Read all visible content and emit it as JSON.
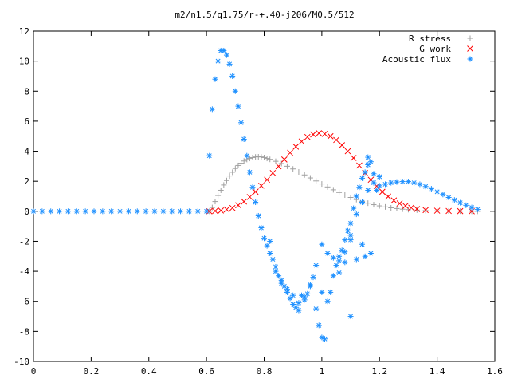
{
  "chart_data": {
    "type": "scatter",
    "title": "m2/n1.5/q1.75/r-+.40-j206/M0.5/512",
    "xlim": [
      0,
      1.6
    ],
    "ylim": [
      -10,
      12
    ],
    "x_ticks": [
      0,
      0.2,
      0.4,
      0.6,
      0.8,
      1,
      1.2,
      1.4,
      1.6
    ],
    "x_tick_labels": [
      "0",
      "0.2",
      "0.4",
      "0.6",
      "0.8",
      "1",
      "1.2",
      "1.4",
      "1.6"
    ],
    "y_ticks": [
      -10,
      -8,
      -6,
      -4,
      -2,
      0,
      2,
      4,
      6,
      8,
      10,
      12
    ],
    "y_tick_labels": [
      "-10",
      "-8",
      "-6",
      "-4",
      "-2",
      "0",
      "2",
      "4",
      "6",
      "8",
      "10",
      "12"
    ],
    "grid": false,
    "legend_position": "top-right",
    "series": [
      {
        "name": "R stress",
        "marker": "plus",
        "color": "#a0a0a0",
        "points": [
          [
            0.61,
            0.0
          ],
          [
            0.62,
            0.25
          ],
          [
            0.63,
            0.65
          ],
          [
            0.64,
            1.05
          ],
          [
            0.65,
            1.4
          ],
          [
            0.66,
            1.75
          ],
          [
            0.67,
            2.05
          ],
          [
            0.68,
            2.35
          ],
          [
            0.69,
            2.6
          ],
          [
            0.7,
            2.85
          ],
          [
            0.71,
            3.05
          ],
          [
            0.72,
            3.2
          ],
          [
            0.73,
            3.35
          ],
          [
            0.74,
            3.45
          ],
          [
            0.75,
            3.52
          ],
          [
            0.76,
            3.58
          ],
          [
            0.77,
            3.62
          ],
          [
            0.78,
            3.63
          ],
          [
            0.79,
            3.62
          ],
          [
            0.8,
            3.58
          ],
          [
            0.81,
            3.52
          ],
          [
            0.82,
            3.46
          ],
          [
            0.84,
            3.33
          ],
          [
            0.86,
            3.18
          ],
          [
            0.88,
            3.0
          ],
          [
            0.9,
            2.82
          ],
          [
            0.92,
            2.62
          ],
          [
            0.94,
            2.42
          ],
          [
            0.96,
            2.22
          ],
          [
            0.98,
            2.02
          ],
          [
            1.0,
            1.82
          ],
          [
            1.02,
            1.62
          ],
          [
            1.04,
            1.43
          ],
          [
            1.06,
            1.25
          ],
          [
            1.08,
            1.08
          ],
          [
            1.1,
            0.92
          ],
          [
            1.12,
            0.78
          ],
          [
            1.14,
            0.65
          ],
          [
            1.16,
            0.54
          ],
          [
            1.18,
            0.44
          ],
          [
            1.2,
            0.36
          ],
          [
            1.22,
            0.29
          ],
          [
            1.24,
            0.23
          ],
          [
            1.26,
            0.18
          ],
          [
            1.28,
            0.14
          ],
          [
            1.3,
            0.11
          ],
          [
            1.33,
            0.08
          ],
          [
            1.36,
            0.05
          ],
          [
            1.4,
            0.03
          ],
          [
            1.44,
            0.02
          ],
          [
            1.48,
            0.01
          ],
          [
            1.52,
            0.0
          ],
          [
            1.54,
            0.0
          ]
        ]
      },
      {
        "name": "G work",
        "marker": "cross",
        "color": "#ff0000",
        "points": [
          [
            0.61,
            0.0
          ],
          [
            0.63,
            0.02
          ],
          [
            0.65,
            0.05
          ],
          [
            0.67,
            0.12
          ],
          [
            0.69,
            0.22
          ],
          [
            0.71,
            0.4
          ],
          [
            0.73,
            0.65
          ],
          [
            0.75,
            0.95
          ],
          [
            0.77,
            1.3
          ],
          [
            0.79,
            1.7
          ],
          [
            0.81,
            2.1
          ],
          [
            0.83,
            2.55
          ],
          [
            0.85,
            3.0
          ],
          [
            0.87,
            3.45
          ],
          [
            0.89,
            3.9
          ],
          [
            0.91,
            4.3
          ],
          [
            0.93,
            4.65
          ],
          [
            0.95,
            4.95
          ],
          [
            0.97,
            5.12
          ],
          [
            0.99,
            5.2
          ],
          [
            1.01,
            5.15
          ],
          [
            1.03,
            5.0
          ],
          [
            1.05,
            4.75
          ],
          [
            1.07,
            4.4
          ],
          [
            1.09,
            4.0
          ],
          [
            1.11,
            3.55
          ],
          [
            1.13,
            3.05
          ],
          [
            1.15,
            2.55
          ],
          [
            1.17,
            2.1
          ],
          [
            1.19,
            1.68
          ],
          [
            1.21,
            1.3
          ],
          [
            1.23,
            0.98
          ],
          [
            1.25,
            0.72
          ],
          [
            1.27,
            0.52
          ],
          [
            1.29,
            0.36
          ],
          [
            1.31,
            0.24
          ],
          [
            1.33,
            0.15
          ],
          [
            1.36,
            0.08
          ],
          [
            1.4,
            0.04
          ],
          [
            1.44,
            0.02
          ],
          [
            1.48,
            0.01
          ],
          [
            1.52,
            0.0
          ]
        ]
      },
      {
        "name": "Acoustic flux",
        "marker": "star",
        "color": "#1e90ff",
        "points": [
          [
            0.0,
            0.0
          ],
          [
            0.03,
            0.0
          ],
          [
            0.06,
            0.0
          ],
          [
            0.09,
            0.0
          ],
          [
            0.12,
            0.0
          ],
          [
            0.15,
            0.0
          ],
          [
            0.18,
            0.0
          ],
          [
            0.21,
            0.0
          ],
          [
            0.24,
            0.0
          ],
          [
            0.27,
            0.0
          ],
          [
            0.3,
            0.0
          ],
          [
            0.33,
            0.0
          ],
          [
            0.36,
            0.0
          ],
          [
            0.39,
            0.0
          ],
          [
            0.42,
            0.0
          ],
          [
            0.45,
            0.0
          ],
          [
            0.48,
            0.0
          ],
          [
            0.51,
            0.0
          ],
          [
            0.54,
            0.0
          ],
          [
            0.57,
            0.0
          ],
          [
            0.6,
            0.0
          ],
          [
            0.61,
            3.7
          ],
          [
            0.62,
            6.8
          ],
          [
            0.63,
            8.8
          ],
          [
            0.64,
            10.0
          ],
          [
            0.65,
            10.7
          ],
          [
            0.66,
            10.7
          ],
          [
            0.67,
            10.4
          ],
          [
            0.68,
            9.8
          ],
          [
            0.69,
            9.0
          ],
          [
            0.7,
            8.0
          ],
          [
            0.71,
            7.0
          ],
          [
            0.72,
            5.9
          ],
          [
            0.73,
            4.8
          ],
          [
            0.74,
            3.7
          ],
          [
            0.75,
            2.6
          ],
          [
            0.76,
            1.6
          ],
          [
            0.77,
            0.6
          ],
          [
            0.78,
            -0.3
          ],
          [
            0.79,
            -1.1
          ],
          [
            0.8,
            -1.8
          ],
          [
            0.81,
            -2.3
          ],
          [
            0.82,
            -2.8
          ],
          [
            0.83,
            -3.2
          ],
          [
            0.84,
            -3.7
          ],
          [
            0.85,
            -4.3
          ],
          [
            0.86,
            -4.6
          ],
          [
            0.87,
            -5.0
          ],
          [
            0.88,
            -5.4
          ],
          [
            0.89,
            -5.8
          ],
          [
            0.9,
            -6.2
          ],
          [
            0.91,
            -6.4
          ],
          [
            0.92,
            -6.1
          ],
          [
            0.93,
            -5.6
          ],
          [
            0.94,
            -5.9
          ],
          [
            0.95,
            -5.5
          ],
          [
            0.96,
            -5.0
          ],
          [
            0.97,
            -4.4
          ],
          [
            0.98,
            -6.5
          ],
          [
            0.99,
            -7.6
          ],
          [
            1.0,
            -8.4
          ],
          [
            1.01,
            -8.5
          ],
          [
            1.02,
            -6.0
          ],
          [
            1.03,
            -5.4
          ],
          [
            1.04,
            -4.3
          ],
          [
            1.05,
            -3.6
          ],
          [
            1.06,
            -3.0
          ],
          [
            1.07,
            -2.6
          ],
          [
            1.08,
            -1.9
          ],
          [
            1.09,
            -1.3
          ],
          [
            1.1,
            -0.8
          ],
          [
            1.11,
            0.2
          ],
          [
            1.12,
            1.0
          ],
          [
            1.13,
            1.6
          ],
          [
            1.14,
            2.2
          ],
          [
            1.15,
            2.6
          ],
          [
            1.16,
            3.1
          ],
          [
            1.17,
            3.3
          ],
          [
            1.18,
            2.5
          ],
          [
            1.19,
            1.4
          ],
          [
            1.2,
            1.7
          ],
          [
            1.22,
            1.8
          ],
          [
            1.24,
            1.9
          ],
          [
            1.26,
            1.95
          ],
          [
            1.28,
            1.98
          ],
          [
            1.3,
            1.98
          ],
          [
            1.32,
            1.9
          ],
          [
            1.34,
            1.8
          ],
          [
            1.36,
            1.65
          ],
          [
            1.38,
            1.5
          ],
          [
            1.4,
            1.3
          ],
          [
            1.42,
            1.12
          ],
          [
            1.44,
            0.92
          ],
          [
            1.46,
            0.75
          ],
          [
            1.48,
            0.57
          ],
          [
            1.5,
            0.4
          ],
          [
            1.52,
            0.25
          ],
          [
            1.54,
            0.12
          ],
          [
            0.82,
            -2.0
          ],
          [
            0.84,
            -4.0
          ],
          [
            0.86,
            -4.8
          ],
          [
            0.88,
            -5.2
          ],
          [
            0.9,
            -5.6
          ],
          [
            0.92,
            -6.6
          ],
          [
            0.94,
            -5.7
          ],
          [
            0.96,
            -4.9
          ],
          [
            0.98,
            -3.6
          ],
          [
            1.0,
            -5.4
          ],
          [
            1.0,
            -2.2
          ],
          [
            1.02,
            -2.8
          ],
          [
            1.04,
            -3.1
          ],
          [
            1.06,
            -3.3
          ],
          [
            1.08,
            -2.7
          ],
          [
            1.1,
            -1.6
          ],
          [
            1.12,
            -0.2
          ],
          [
            1.14,
            0.6
          ],
          [
            1.16,
            1.4
          ],
          [
            1.18,
            1.9
          ],
          [
            1.2,
            2.3
          ],
          [
            1.06,
            -4.1
          ],
          [
            1.08,
            -3.4
          ],
          [
            1.1,
            -1.9
          ],
          [
            1.12,
            -3.2
          ],
          [
            1.14,
            -2.2
          ],
          [
            1.16,
            3.6
          ],
          [
            1.15,
            -3.0
          ],
          [
            1.17,
            -2.8
          ],
          [
            1.1,
            -7.0
          ]
        ]
      }
    ]
  }
}
